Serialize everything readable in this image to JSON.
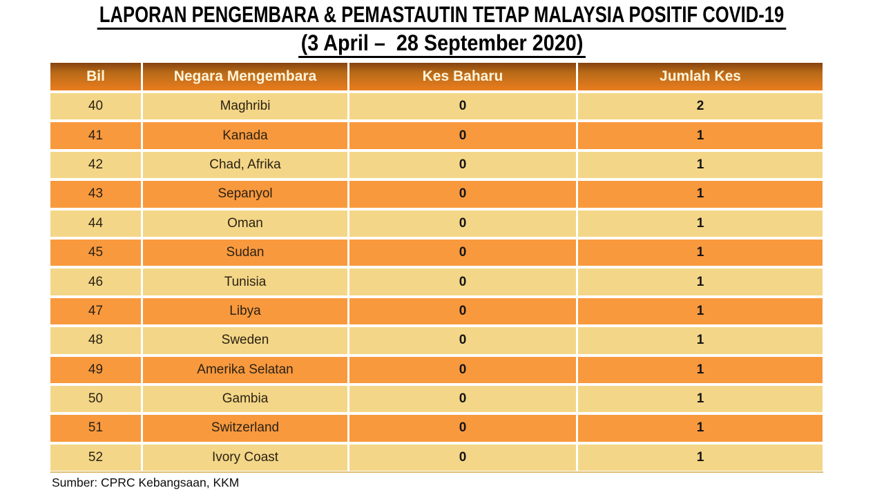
{
  "slide": {
    "title_line1": "LAPORAN PENGEMBARA & PEMASTAUTIN TETAP MALAYSIA POSITIF COVID-19",
    "title_line2": "(3 April –  28 September 2020)",
    "source_note": "Sumber: CPRC Kebangsaan, KKM"
  },
  "table": {
    "columns": [
      "Bil",
      "Negara Mengembara",
      "Kes Baharu",
      "Jumlah Kes"
    ],
    "rows": [
      {
        "bil": "40",
        "negara": "Maghribi",
        "kes_baharu": "0",
        "jumlah_kes": "2"
      },
      {
        "bil": "41",
        "negara": "Kanada",
        "kes_baharu": "0",
        "jumlah_kes": "1"
      },
      {
        "bil": "42",
        "negara": "Chad, Afrika",
        "kes_baharu": "0",
        "jumlah_kes": "1"
      },
      {
        "bil": "43",
        "negara": "Sepanyol",
        "kes_baharu": "0",
        "jumlah_kes": "1"
      },
      {
        "bil": "44",
        "negara": "Oman",
        "kes_baharu": "0",
        "jumlah_kes": "1"
      },
      {
        "bil": "45",
        "negara": "Sudan",
        "kes_baharu": "0",
        "jumlah_kes": "1"
      },
      {
        "bil": "46",
        "negara": "Tunisia",
        "kes_baharu": "0",
        "jumlah_kes": "1"
      },
      {
        "bil": "47",
        "negara": "Libya",
        "kes_baharu": "0",
        "jumlah_kes": "1"
      },
      {
        "bil": "48",
        "negara": "Sweden",
        "kes_baharu": "0",
        "jumlah_kes": "1"
      },
      {
        "bil": "49",
        "negara": "Amerika Selatan",
        "kes_baharu": "0",
        "jumlah_kes": "1"
      },
      {
        "bil": "50",
        "negara": "Gambia",
        "kes_baharu": "0",
        "jumlah_kes": "1"
      },
      {
        "bil": "51",
        "negara": "Switzerland",
        "kes_baharu": "0",
        "jumlah_kes": "1"
      },
      {
        "bil": "52",
        "negara": "Ivory Coast",
        "kes_baharu": "0",
        "jumlah_kes": "1"
      }
    ]
  },
  "colors": {
    "header_gradient_top": "#85430f",
    "header_gradient_mid": "#b86a18",
    "header_gradient_bottom": "#ea7c1e",
    "header_text": "#fdf4da",
    "row_light": "#f3d687",
    "row_orange": "#f8993e",
    "cell_text": "#2b2214",
    "title_text": "#000000",
    "table_bottom_line": "#dcbd72"
  }
}
